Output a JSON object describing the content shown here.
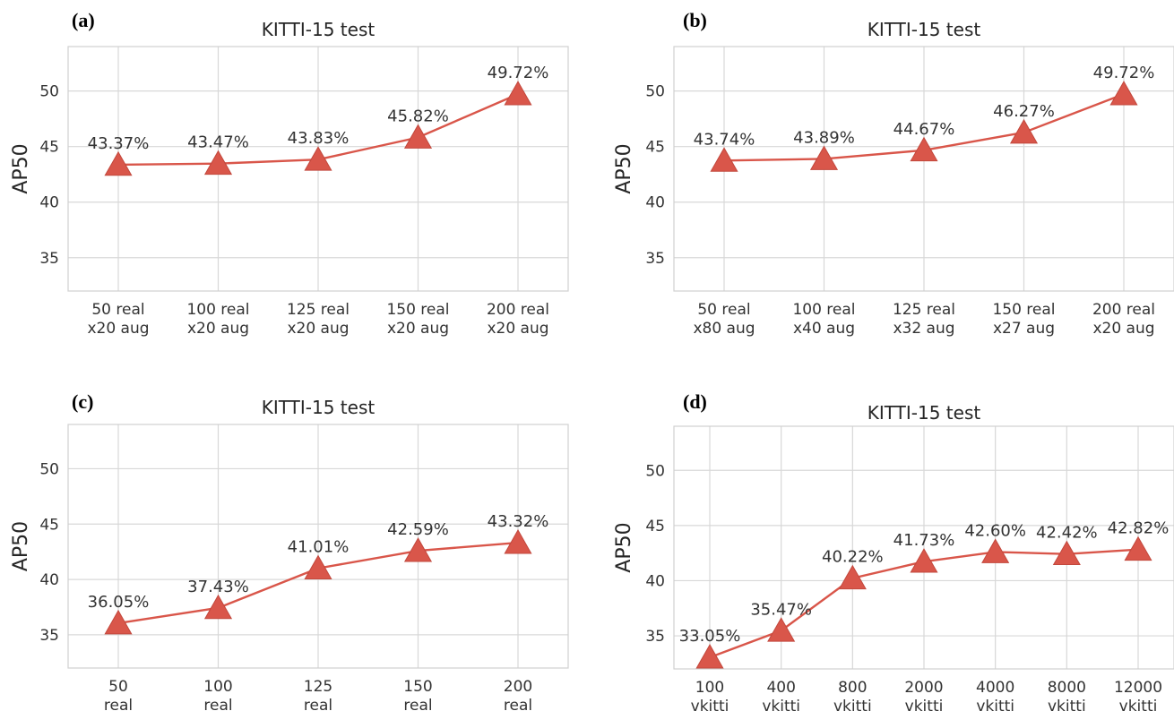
{
  "chart_data": [
    {
      "panel": "(a)",
      "type": "line",
      "title": "KITTI-15 test",
      "ylabel": "AP50",
      "ylim": [
        32,
        54
      ],
      "yticks": [
        35,
        40,
        45,
        50
      ],
      "grid": true,
      "marker": "triangle",
      "color": "#d9564a",
      "categories": [
        [
          "50 real",
          "x20 aug"
        ],
        [
          "100 real",
          "x20 aug"
        ],
        [
          "125 real",
          "x20 aug"
        ],
        [
          "150 real",
          "x20 aug"
        ],
        [
          "200 real",
          "x20 aug"
        ]
      ],
      "values": [
        43.37,
        43.47,
        43.83,
        45.82,
        49.72
      ],
      "data_labels": [
        "43.37%",
        "43.47%",
        "43.83%",
        "45.82%",
        "49.72%"
      ]
    },
    {
      "panel": "(b)",
      "type": "line",
      "title": "KITTI-15 test",
      "ylabel": "AP50",
      "ylim": [
        32,
        54
      ],
      "yticks": [
        35,
        40,
        45,
        50
      ],
      "grid": true,
      "marker": "triangle",
      "color": "#d9564a",
      "categories": [
        [
          "50 real",
          "x80 aug"
        ],
        [
          "100 real",
          "x40 aug"
        ],
        [
          "125 real",
          "x32 aug"
        ],
        [
          "150 real",
          "x27 aug"
        ],
        [
          "200 real",
          "x20 aug"
        ]
      ],
      "values": [
        43.74,
        43.89,
        44.67,
        46.27,
        49.72
      ],
      "data_labels": [
        "43.74%",
        "43.89%",
        "44.67%",
        "46.27%",
        "49.72%"
      ]
    },
    {
      "panel": "(c)",
      "type": "line",
      "title": "KITTI-15 test",
      "ylabel": "AP50",
      "ylim": [
        32,
        54
      ],
      "yticks": [
        35,
        40,
        45,
        50
      ],
      "grid": true,
      "marker": "triangle",
      "color": "#d9564a",
      "categories": [
        [
          "50",
          "real"
        ],
        [
          "100",
          "real"
        ],
        [
          "125",
          "real"
        ],
        [
          "150",
          "real"
        ],
        [
          "200",
          "real"
        ]
      ],
      "values": [
        36.05,
        37.43,
        41.01,
        42.59,
        43.32
      ],
      "data_labels": [
        "36.05%",
        "37.43%",
        "41.01%",
        "42.59%",
        "43.32%"
      ]
    },
    {
      "panel": "(d)",
      "type": "line",
      "title": "KITTI-15 test",
      "ylabel": "AP50",
      "ylim": [
        32,
        54
      ],
      "yticks": [
        35,
        40,
        45,
        50
      ],
      "grid": true,
      "marker": "triangle",
      "color": "#d9564a",
      "categories": [
        [
          "100",
          "vkitti"
        ],
        [
          "400",
          "vkitti"
        ],
        [
          "800",
          "vkitti"
        ],
        [
          "2000",
          "vkitti"
        ],
        [
          "4000",
          "vkitti"
        ],
        [
          "8000",
          "vkitti"
        ],
        [
          "12000",
          "vkitti"
        ]
      ],
      "values": [
        33.05,
        35.47,
        40.22,
        41.73,
        42.6,
        42.42,
        42.82
      ],
      "data_labels": [
        "33.05%",
        "35.47%",
        "40.22%",
        "41.73%",
        "42.60%",
        "42.42%",
        "42.82%"
      ]
    }
  ]
}
